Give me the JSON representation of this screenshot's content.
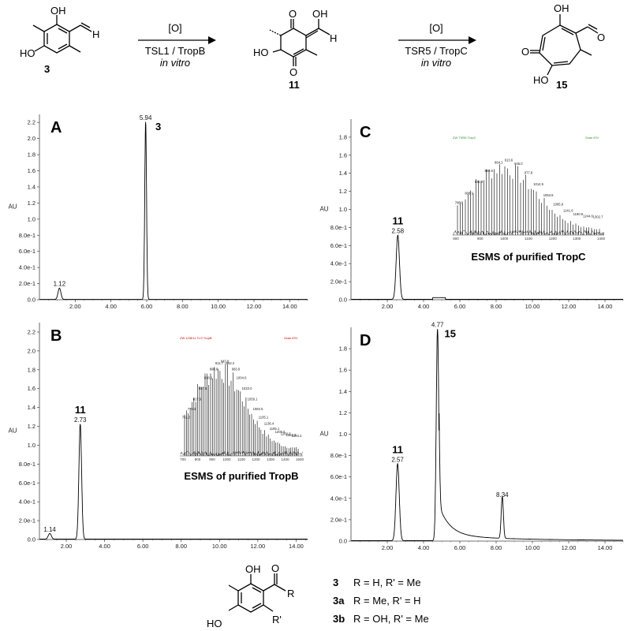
{
  "scheme": {
    "compounds": {
      "c3": "3",
      "c11": "11",
      "c15": "15"
    },
    "atoms": {
      "OH": "OH",
      "HO": "HO",
      "O": "O",
      "H": "H"
    },
    "arrow1": {
      "oxidant": "[O]",
      "enzyme": "TSL1 / TropB",
      "condition": "in vitro"
    },
    "arrow2": {
      "oxidant": "[O]",
      "enzyme": "TSR5 / TropC",
      "condition": "in vitro"
    }
  },
  "legend": {
    "atoms": {
      "OH": "OH",
      "HO": "HO",
      "O": "O",
      "R": "R",
      "Rp": "R'"
    },
    "rows": [
      {
        "id": "3",
        "text": "R = H, R' = Me"
      },
      {
        "id": "3a",
        "text": "R = Me, R' = H"
      },
      {
        "id": "3b",
        "text": "R = OH, R' = Me"
      }
    ]
  },
  "insets": [
    {
      "panel": "B",
      "caption": "ESMS of purified TropB",
      "peaks": [
        "761.3",
        "778.3",
        "817.9",
        "857.6",
        "838.1",
        "898.6",
        "911.7",
        "943.8",
        "962.2",
        "983.9",
        "1004.6",
        "1033.0",
        "1059.1",
        "1082.5",
        "1105.1",
        "1136.4",
        "1165.1",
        "1206.5",
        "1260.3",
        "1322.7",
        "1384.2"
      ],
      "ticks": [
        "700",
        "800",
        "900",
        "1000",
        "1100",
        "1200",
        "1300",
        "1400",
        "1500"
      ]
    },
    {
      "panel": "C",
      "caption": "ESMS of purified TropC",
      "peaks": [
        "786.8",
        "808.3",
        "831.4",
        "856.5",
        "884.2",
        "913.6",
        "945.0",
        "977.8",
        "1014.5",
        "1053.6",
        "1095.9",
        "1141.6",
        "1190.9",
        "1244.6",
        "1302.7"
      ],
      "ticks": [
        "800",
        "900",
        "1000",
        "1100",
        "1200",
        "1300",
        "1400"
      ]
    }
  ],
  "chart_data": [
    {
      "panel": "A",
      "type": "line",
      "ylabel": "AU",
      "xlim": [
        0,
        15
      ],
      "ylim": [
        0,
        2.3
      ],
      "xticks": [
        "2.00",
        "4.00",
        "6.00",
        "8.00",
        "10.00",
        "12.00",
        "14.00"
      ],
      "yticks": [
        "0.0",
        "2.0e-1",
        "4.0e-1",
        "6.0e-1",
        "8.0e-1",
        "1.0",
        "1.2",
        "1.4",
        "1.6",
        "1.8",
        "2.0",
        "2.2"
      ],
      "peaks": [
        {
          "rt": 1.12,
          "height": 0.14,
          "width": 0.08,
          "label": "1.12",
          "compound": ""
        },
        {
          "rt": 5.94,
          "height": 2.2,
          "width": 0.05,
          "label": "5.94",
          "compound": "3"
        }
      ]
    },
    {
      "panel": "B",
      "type": "line",
      "ylabel": "AU",
      "xlim": [
        0.6,
        14.6
      ],
      "ylim": [
        0,
        2.3
      ],
      "xticks": [
        "2.00",
        "4.00",
        "6.00",
        "8.00",
        "10.00",
        "12.00",
        "14.00"
      ],
      "yticks": [
        "0.0",
        "2.0e-1",
        "4.0e-1",
        "6.0e-1",
        "8.0e-1",
        "1.0",
        "1.2",
        "1.4",
        "1.6",
        "1.8",
        "2.0",
        "2.2"
      ],
      "peaks": [
        {
          "rt": 1.14,
          "height": 0.06,
          "width": 0.08,
          "label": "1.14",
          "compound": ""
        },
        {
          "rt": 2.73,
          "height": 1.22,
          "width": 0.07,
          "label": "2.73",
          "compound": "11"
        }
      ]
    },
    {
      "panel": "C",
      "type": "line",
      "ylabel": "AU",
      "xlim": [
        0,
        15
      ],
      "ylim": [
        0,
        2.0
      ],
      "xticks": [
        "2.00",
        "4.00",
        "6.00",
        "8.00",
        "10.00",
        "12.00",
        "14.00"
      ],
      "yticks": [
        "0.0",
        "2.0e-1",
        "4.0e-1",
        "6.0e-1",
        "8.0e-1",
        "1.0",
        "1.2",
        "1.4",
        "1.6",
        "1.8"
      ],
      "peaks": [
        {
          "rt": 2.58,
          "height": 0.71,
          "width": 0.09,
          "label": "2.58",
          "compound": "11"
        }
      ]
    },
    {
      "panel": "D",
      "type": "line",
      "ylabel": "AU",
      "xlim": [
        0,
        15
      ],
      "ylim": [
        0,
        2.0
      ],
      "xticks": [
        "2.00",
        "4.00",
        "6.00",
        "8.00",
        "10.00",
        "12.00",
        "14.00"
      ],
      "yticks": [
        "0.0",
        "2.0e-1",
        "4.0e-1",
        "6.0e-1",
        "8.0e-1",
        "1.0",
        "1.2",
        "1.4",
        "1.6",
        "1.8"
      ],
      "peaks": [
        {
          "rt": 2.57,
          "height": 0.72,
          "width": 0.09,
          "label": "2.57",
          "compound": "11"
        },
        {
          "rt": 4.77,
          "height": 1.98,
          "width": 0.07,
          "label": "4.77",
          "compound": "15"
        },
        {
          "rt": 8.34,
          "height": 0.39,
          "width": 0.06,
          "label": "8.34",
          "compound": ""
        }
      ]
    }
  ]
}
